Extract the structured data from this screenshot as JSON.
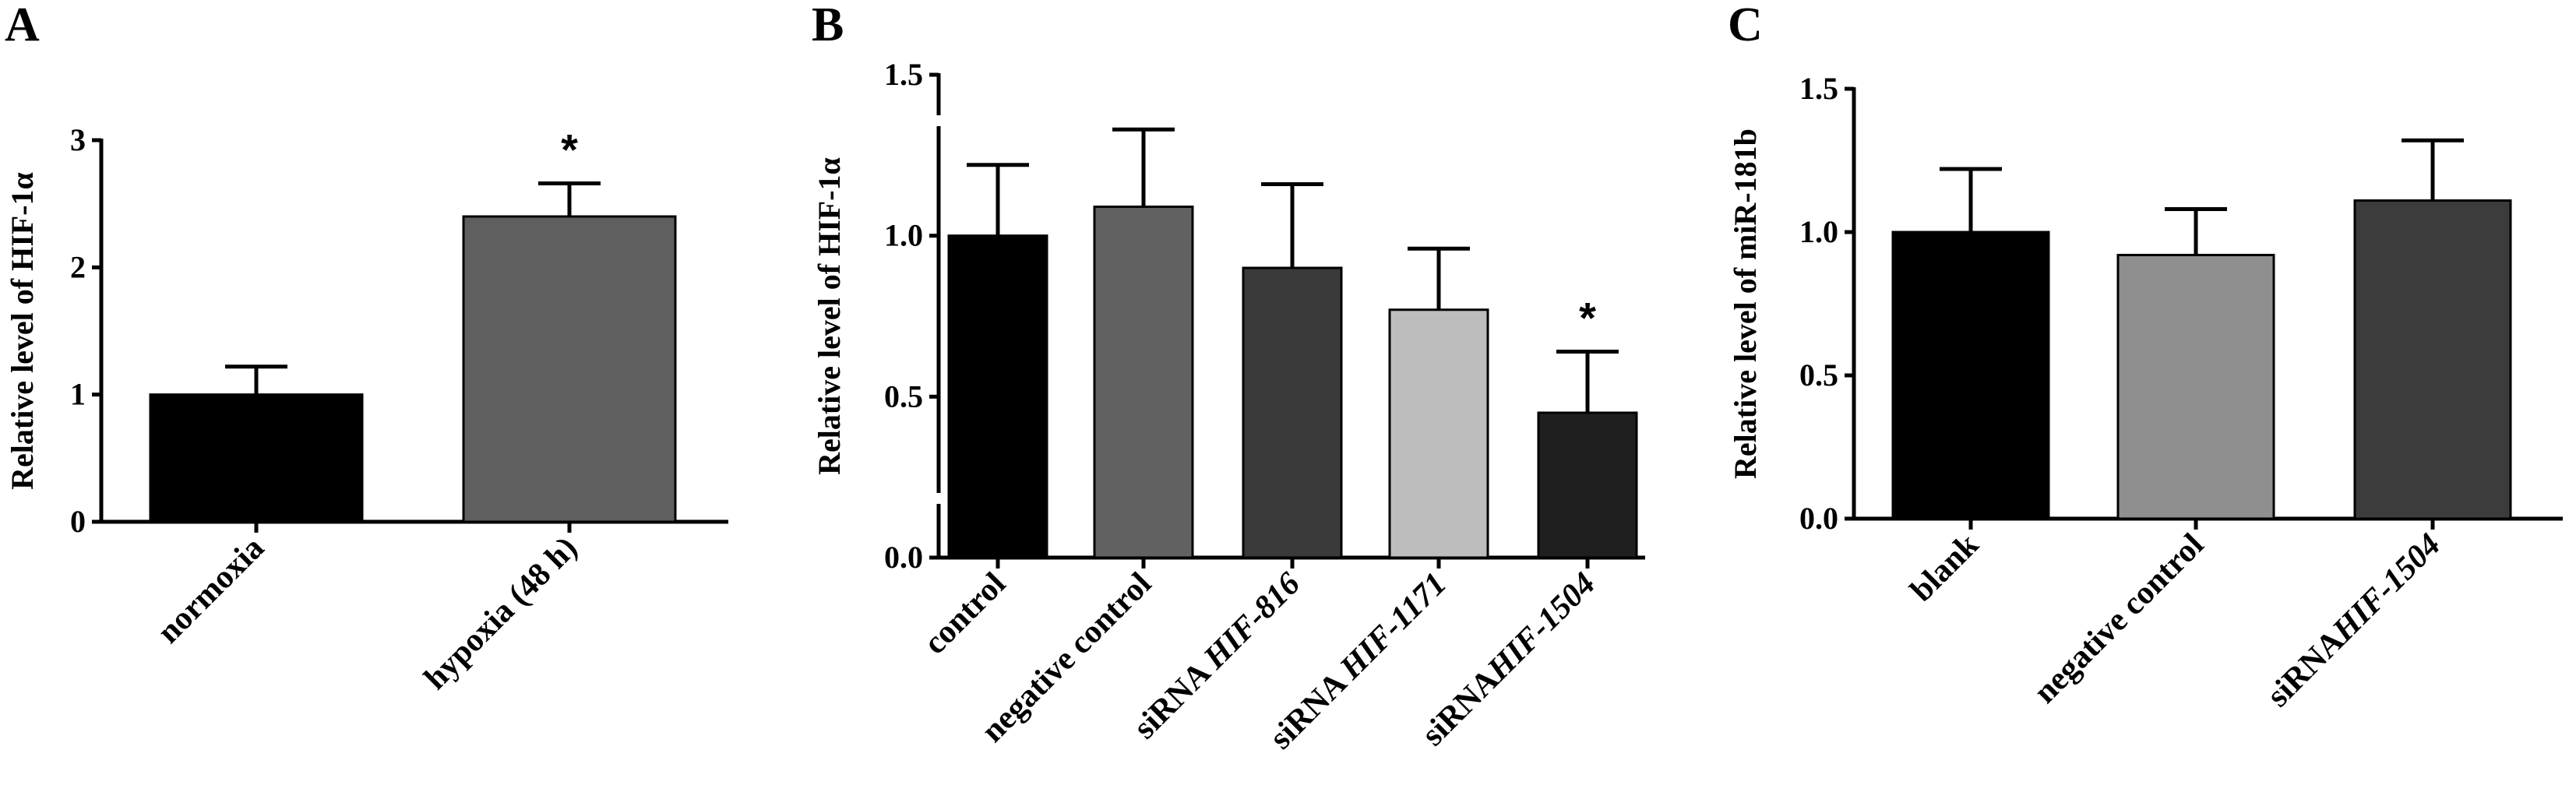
{
  "chart_data": [
    {
      "type": "bar",
      "panel": "A",
      "ylabel": "Relative level of HIF-1α",
      "ylim": [
        0,
        3
      ],
      "yticks": [
        "0",
        "1",
        "2",
        "3"
      ],
      "categories": [
        {
          "parts": [
            {
              "text": "normoxia",
              "italic": false
            }
          ]
        },
        {
          "parts": [
            {
              "text": "hypoxia (48 h)",
              "italic": false
            }
          ]
        }
      ],
      "values": [
        1.0,
        2.4
      ],
      "errors": [
        0.22,
        0.26
      ],
      "colors": [
        "#000000",
        "#5f5f5f"
      ],
      "significance": [
        "",
        "*"
      ]
    },
    {
      "type": "bar",
      "panel": "B",
      "ylabel": "Relative level of HIF-1α",
      "ylim": [
        0,
        1.5
      ],
      "yticks": [
        "0.0",
        "0.5",
        "1.0",
        "1.5"
      ],
      "categories": [
        {
          "parts": [
            {
              "text": "control",
              "italic": false
            }
          ]
        },
        {
          "parts": [
            {
              "text": "negative control",
              "italic": false
            }
          ]
        },
        {
          "parts": [
            {
              "text": "siRNA ",
              "italic": false
            },
            {
              "text": "HIF-816",
              "italic": true
            }
          ]
        },
        {
          "parts": [
            {
              "text": "siRNA ",
              "italic": false
            },
            {
              "text": "HIF-1171",
              "italic": true
            }
          ]
        },
        {
          "parts": [
            {
              "text": "siRNA",
              "italic": false
            },
            {
              "text": "HIF-1504",
              "italic": true
            }
          ]
        }
      ],
      "values": [
        1.0,
        1.09,
        0.9,
        0.77,
        0.45
      ],
      "errors": [
        0.22,
        0.24,
        0.26,
        0.19,
        0.19
      ],
      "colors": [
        "#000000",
        "#616161",
        "#3a3a3a",
        "#bdbdbd",
        "#1f1f1f"
      ],
      "significance": [
        "",
        "",
        "",
        "",
        "*"
      ]
    },
    {
      "type": "bar",
      "panel": "C",
      "ylabel": "Relative level of miR-181b",
      "ylim": [
        0,
        1.5
      ],
      "yticks": [
        "0.0",
        "0.5",
        "1.0",
        "1.5"
      ],
      "categories": [
        {
          "parts": [
            {
              "text": "blank",
              "italic": false
            }
          ]
        },
        {
          "parts": [
            {
              "text": "negative control",
              "italic": false
            }
          ]
        },
        {
          "parts": [
            {
              "text": "siRNA",
              "italic": false
            },
            {
              "text": "HIF-1504",
              "italic": true
            }
          ]
        }
      ],
      "values": [
        1.0,
        0.92,
        1.11
      ],
      "errors": [
        0.22,
        0.16,
        0.21
      ],
      "colors": [
        "#000000",
        "#8f8f8f",
        "#3c3c3c"
      ],
      "significance": [
        "",
        "",
        ""
      ]
    }
  ]
}
